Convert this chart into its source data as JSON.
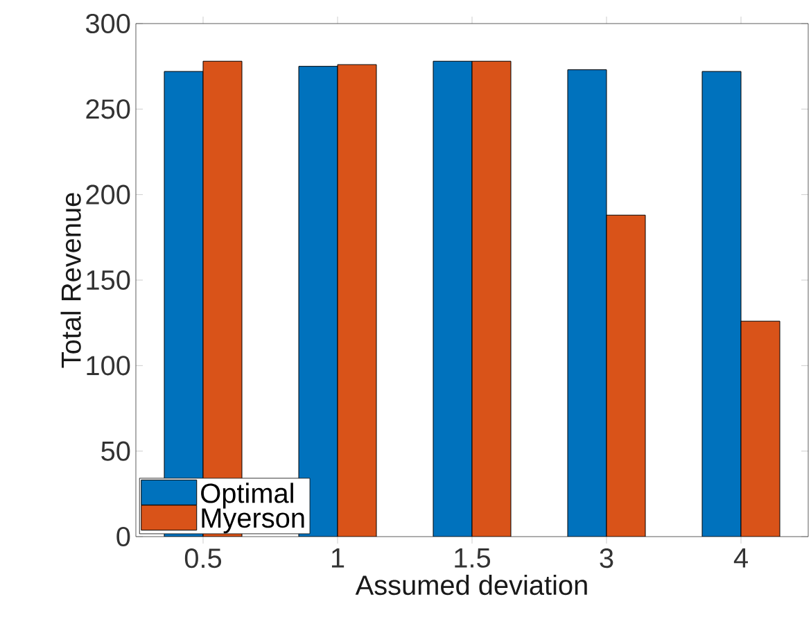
{
  "chart_data": {
    "type": "bar",
    "xlabel": "Assumed deviation",
    "ylabel": "Total Revenue",
    "categories": [
      "0.5",
      "1",
      "1.5",
      "3",
      "4"
    ],
    "series": [
      {
        "name": "Optimal",
        "color": "#0072bd",
        "values": [
          272,
          275,
          278,
          273,
          272
        ]
      },
      {
        "name": "Myerson",
        "color": "#d95319",
        "values": [
          278,
          276,
          278,
          188,
          126
        ]
      }
    ],
    "ylim": [
      0,
      300
    ],
    "yticks": [
      0,
      50,
      100,
      150,
      200,
      250,
      300
    ],
    "legend": "bottom left"
  }
}
